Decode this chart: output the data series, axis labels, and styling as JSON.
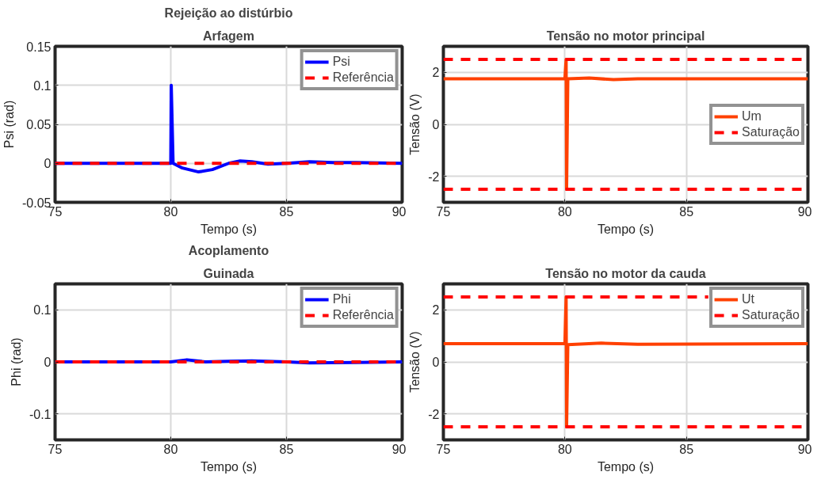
{
  "chart_data": [
    {
      "type": "line",
      "title": "Rejeição ao distúrbio",
      "subtitle": "Arfagem",
      "xlabel": "Tempo (s)",
      "ylabel": "Psi (rad)",
      "xlim": [
        75,
        90
      ],
      "xticks": [
        75,
        80,
        85,
        90
      ],
      "ylim": [
        -0.05,
        0.15
      ],
      "yticks": [
        -0.05,
        0,
        0.05,
        0.1,
        0.15
      ],
      "grid": true,
      "legend": "top right",
      "series": [
        {
          "name": "Psi",
          "color": "#0000ff",
          "line_style": "solid",
          "x": [
            75,
            80,
            80.02,
            80.1,
            80.5,
            81.2,
            81.8,
            82.5,
            83.0,
            83.5,
            84.2,
            85,
            86,
            87,
            88,
            90
          ],
          "values": [
            0,
            0,
            0.1,
            0.0,
            -0.006,
            -0.011,
            -0.008,
            0.0,
            0.003,
            0.002,
            -0.001,
            0.0,
            0.002,
            0.001,
            0.001,
            0
          ]
        },
        {
          "name": "Referência",
          "color": "#ff0000",
          "line_style": "dashed",
          "x": [
            75,
            90
          ],
          "values": [
            0,
            0
          ]
        }
      ]
    },
    {
      "type": "line",
      "title": "Tensão no motor principal",
      "xlabel": "Tempo (s)",
      "ylabel": "Tensão (V)",
      "xlim": [
        75,
        90
      ],
      "xticks": [
        75,
        80,
        85,
        90
      ],
      "ylim": [
        -3,
        3
      ],
      "yticks": [
        -2,
        0,
        2
      ],
      "grid": true,
      "legend": "right",
      "series": [
        {
          "name": "Um",
          "color": "#ff4000",
          "line_style": "solid",
          "x": [
            75,
            80,
            80.05,
            80.07,
            80.12,
            81,
            82,
            83,
            90
          ],
          "values": [
            1.75,
            1.75,
            2.5,
            -2.5,
            1.75,
            1.78,
            1.72,
            1.75,
            1.75
          ]
        },
        {
          "name": "Saturação",
          "color": "#ff0000",
          "line_style": "dashed",
          "x": [
            75,
            90
          ],
          "values": [
            2.5,
            2.5
          ]
        },
        {
          "color": "#ff0000",
          "line_style": "dashed",
          "x": [
            75,
            90
          ],
          "values": [
            -2.5,
            -2.5
          ]
        }
      ]
    },
    {
      "type": "line",
      "title": "Acoplamento",
      "subtitle": "Guinada",
      "xlabel": "Tempo (s)",
      "ylabel": "Phi (rad)",
      "xlim": [
        75,
        90
      ],
      "xticks": [
        75,
        80,
        85,
        90
      ],
      "ylim": [
        -0.15,
        0.15
      ],
      "yticks": [
        -0.1,
        0,
        0.1
      ],
      "grid": true,
      "legend": "top right",
      "series": [
        {
          "name": "Phi",
          "color": "#0000ff",
          "line_style": "solid",
          "x": [
            75,
            80,
            80.7,
            81.5,
            82.5,
            83.5,
            85,
            86,
            88,
            90
          ],
          "values": [
            0,
            0,
            0.004,
            0,
            0.001,
            0.002,
            0,
            -0.002,
            -0.001,
            0
          ]
        },
        {
          "name": "Referência",
          "color": "#ff0000",
          "line_style": "dashed",
          "x": [
            75,
            90
          ],
          "values": [
            0,
            0
          ]
        }
      ]
    },
    {
      "type": "line",
      "title": "Tensão no motor da cauda",
      "xlabel": "Tempo (s)",
      "ylabel": "Tensão (V)",
      "xlim": [
        75,
        90
      ],
      "xticks": [
        75,
        80,
        85,
        90
      ],
      "ylim": [
        -3,
        3
      ],
      "yticks": [
        -2,
        0,
        2
      ],
      "grid": true,
      "legend": "top right",
      "series": [
        {
          "name": "Ut",
          "color": "#ff4000",
          "line_style": "solid",
          "x": [
            75,
            80,
            80.05,
            80.07,
            80.12,
            81.5,
            83,
            90
          ],
          "values": [
            0.7,
            0.7,
            2.5,
            -2.5,
            0.66,
            0.72,
            0.68,
            0.7
          ]
        },
        {
          "name": "Saturação",
          "color": "#ff0000",
          "line_style": "dashed",
          "x": [
            75,
            85.9
          ],
          "values": [
            2.5,
            2.5
          ]
        },
        {
          "color": "#ff0000",
          "line_style": "dashed",
          "x": [
            75,
            90
          ],
          "values": [
            -2.5,
            -2.5
          ]
        }
      ]
    }
  ]
}
